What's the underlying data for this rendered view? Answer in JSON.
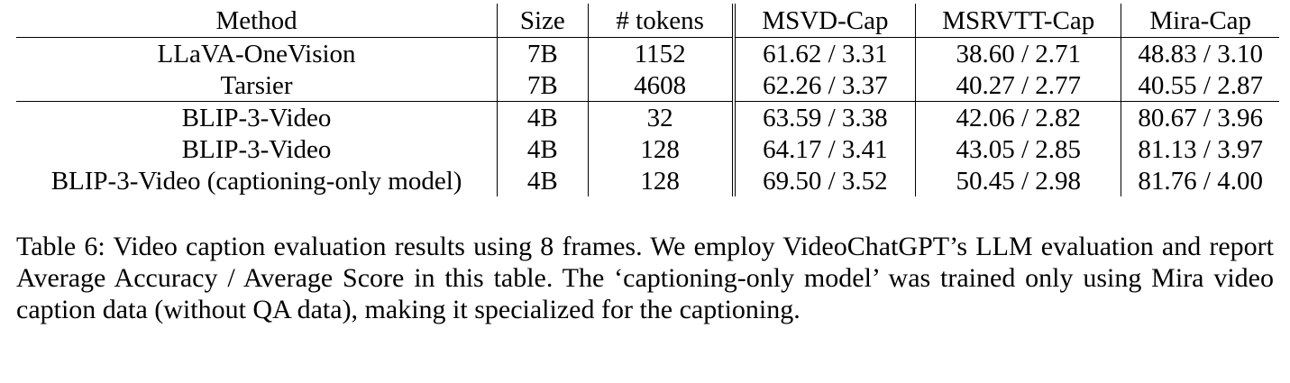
{
  "table": {
    "headers": {
      "method": "Method",
      "size": "Size",
      "tokens": "# tokens",
      "msvd": "MSVD-Cap",
      "msrvtt": "MSRVTT-Cap",
      "mira": "Mira-Cap"
    },
    "group1": [
      {
        "method": "LLaVA-OneVision",
        "size": "7B",
        "tokens": "1152",
        "msvd": "61.62 / 3.31",
        "msrvtt": "38.60 / 2.71",
        "mira": "48.83 / 3.10"
      },
      {
        "method": "Tarsier",
        "size": "7B",
        "tokens": "4608",
        "msvd": "62.26 / 3.37",
        "msrvtt": "40.27 / 2.77",
        "mira": "40.55 / 2.87"
      }
    ],
    "group2": [
      {
        "method": "BLIP-3-Video",
        "size": "4B",
        "tokens": "32",
        "msvd": "63.59 / 3.38",
        "msrvtt": "42.06 / 2.82",
        "mira": "80.67 / 3.96"
      },
      {
        "method": "BLIP-3-Video",
        "size": "4B",
        "tokens": "128",
        "msvd": "64.17 / 3.41",
        "msrvtt": "43.05 / 2.85",
        "mira": "81.13 / 3.97"
      },
      {
        "method": "BLIP-3-Video (captioning-only model)",
        "size": "4B",
        "tokens": "128",
        "msvd": "69.50 / 3.52",
        "msrvtt": "50.45 / 2.98",
        "mira": "81.76 / 4.00"
      }
    ]
  },
  "caption": {
    "label": "Table 6:",
    "text": "Video caption evaluation results using 8 frames.  We employ VideoChatGPT’s LLM evaluation and report Average Accuracy / Average Score in this table. The ‘captioning-only model’ was trained only using Mira video caption data (without QA data), making it specialized for the captioning."
  }
}
